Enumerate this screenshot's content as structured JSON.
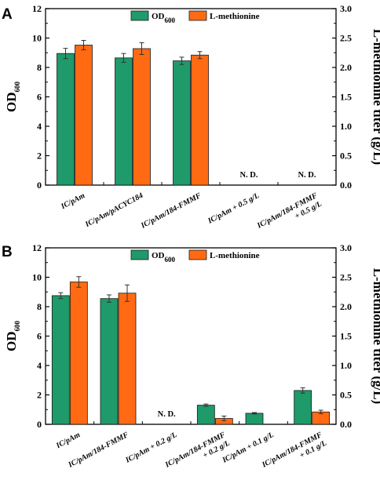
{
  "chart_data": [
    {
      "type": "bar",
      "panel_label": "A",
      "categories": [
        [
          "IC/pAm"
        ],
        [
          "IC/pAm/pACYC184"
        ],
        [
          "IC/pAm/184-FMMF"
        ],
        [
          "IC/pAm + 0.5 g/L"
        ],
        [
          "IC/pAm/184-FMMF",
          "+ 0.5 g/L"
        ]
      ],
      "series": [
        {
          "name": "OD",
          "name_sub": "600",
          "axis": "left",
          "color": "#1f9a6a",
          "values": [
            8.95,
            8.65,
            8.45,
            null,
            null
          ],
          "errors": [
            0.35,
            0.3,
            0.25,
            null,
            null
          ]
        },
        {
          "name": "L-methionine",
          "axis": "right",
          "color": "#ff6a13",
          "values": [
            2.38,
            2.32,
            2.21,
            null,
            null
          ],
          "errors": [
            0.08,
            0.1,
            0.06,
            null,
            null
          ]
        }
      ],
      "not_detected_label": "N. D.",
      "not_detected_categories": [
        3,
        4
      ],
      "ylabel_left": "OD",
      "ylabel_left_sub": "600",
      "ylabel_right": "L-methionine titer (g/L)",
      "ylim_left": [
        0,
        12
      ],
      "ylim_right": [
        0,
        3.0
      ],
      "yticks_left": [
        "0",
        "2",
        "4",
        "6",
        "8",
        "10",
        "12"
      ],
      "yticks_right": [
        "0.0",
        "0.5",
        "1.0",
        "1.5",
        "2.0",
        "2.5",
        "3.0"
      ],
      "legend_position": "top-center"
    },
    {
      "type": "bar",
      "panel_label": "B",
      "categories": [
        [
          "IC/pAm"
        ],
        [
          "IC/pAm/184-FMMF"
        ],
        [
          "IC/pAm + 0.2 g/L"
        ],
        [
          "IC/pAm/184-FMMF",
          "+ 0.2 g/L"
        ],
        [
          "IC/pAm + 0.1 g/L"
        ],
        [
          "IC/pAm/184-FMMF",
          "+ 0.1 g/L"
        ]
      ],
      "series": [
        {
          "name": "OD",
          "name_sub": "600",
          "axis": "left",
          "color": "#1f9a6a",
          "values": [
            8.75,
            8.55,
            null,
            1.3,
            0.75,
            2.3
          ],
          "errors": [
            0.2,
            0.25,
            null,
            0.08,
            0.05,
            0.18
          ]
        },
        {
          "name": "L-methionine",
          "axis": "right",
          "color": "#ff6a13",
          "values": [
            2.42,
            2.23,
            null,
            0.1,
            null,
            0.21
          ],
          "errors": [
            0.09,
            0.14,
            null,
            0.04,
            null,
            0.03
          ]
        }
      ],
      "not_detected_label": "N. D.",
      "not_detected_categories": [
        2
      ],
      "ylabel_left": "OD",
      "ylabel_left_sub": "600",
      "ylabel_right": "L-methionine titer (g/L)",
      "ylim_left": [
        0,
        12
      ],
      "ylim_right": [
        0,
        3.0
      ],
      "yticks_left": [
        "0",
        "2",
        "4",
        "6",
        "8",
        "10",
        "12"
      ],
      "yticks_right": [
        "0.0",
        "0.5",
        "1.0",
        "1.5",
        "2.0",
        "2.5",
        "3.0"
      ],
      "legend_position": "top-center"
    }
  ]
}
